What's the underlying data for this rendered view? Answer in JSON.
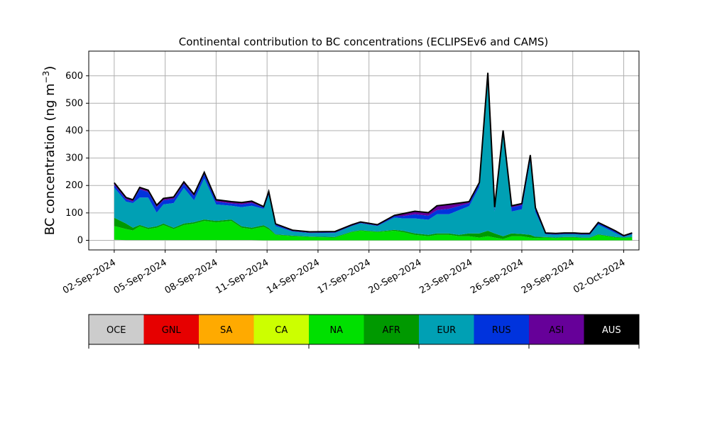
{
  "chart_data": {
    "type": "area",
    "stacked": true,
    "title": "Continental contribution to BC concentrations (ECLIPSEv6 and CAMS)",
    "ylabel": "BC concentration (ng m",
    "ylabel_sup": "−3",
    "ylabel_close": ")",
    "xlabel": "",
    "ylim": [
      -35,
      690
    ],
    "xlim": [
      0.0,
      32.4
    ],
    "grid": true,
    "x_axis": "date",
    "yticks": [
      0,
      100,
      200,
      300,
      400,
      500,
      600
    ],
    "xticks": [
      {
        "day": 1.5,
        "label": "02-Sep-2024"
      },
      {
        "day": 4.5,
        "label": "05-Sep-2024"
      },
      {
        "day": 7.5,
        "label": "08-Sep-2024"
      },
      {
        "day": 10.5,
        "label": "11-Sep-2024"
      },
      {
        "day": 13.5,
        "label": "14-Sep-2024"
      },
      {
        "day": 16.5,
        "label": "17-Sep-2024"
      },
      {
        "day": 19.5,
        "label": "20-Sep-2024"
      },
      {
        "day": 22.5,
        "label": "23-Sep-2024"
      },
      {
        "day": 25.5,
        "label": "26-Sep-2024"
      },
      {
        "day": 28.5,
        "label": "29-Sep-2024"
      },
      {
        "day": 31.5,
        "label": "02-Oct-2024"
      }
    ],
    "x": [
      1.5,
      2.2,
      2.6,
      3.0,
      3.5,
      4.0,
      4.4,
      5.0,
      5.6,
      6.2,
      6.8,
      7.5,
      8.4,
      9.0,
      9.6,
      10.3,
      10.6,
      11.0,
      12.0,
      13.0,
      14.5,
      15.5,
      16.0,
      17.0,
      18.0,
      18.5,
      19.2,
      20.0,
      20.5,
      21.2,
      21.8,
      22.4,
      23.0,
      23.5,
      23.9,
      24.4,
      24.9,
      25.5,
      26.0,
      26.3,
      26.9,
      27.5,
      28.0,
      28.6,
      29.0,
      29.5,
      30.0,
      30.5,
      31.0,
      31.5,
      32.0
    ],
    "series": [
      {
        "name": "OCE",
        "color": "#cccccc",
        "values": [
          2,
          1,
          1,
          1,
          1,
          1,
          1,
          1,
          1,
          1,
          1,
          1,
          1,
          1,
          1,
          0,
          0,
          0,
          0,
          0,
          0,
          0,
          0,
          0,
          0,
          0,
          0,
          0,
          0,
          0,
          0,
          0,
          0,
          0,
          0,
          0,
          0,
          0,
          0,
          0,
          0,
          0,
          0,
          0,
          0,
          0,
          0,
          0,
          0,
          0,
          0
        ]
      },
      {
        "name": "GNL",
        "color": "#e60000",
        "values": [
          0,
          0,
          0,
          0,
          0,
          0,
          0,
          0,
          0,
          0,
          0,
          0,
          0,
          0,
          0,
          0,
          0,
          0,
          0,
          0,
          0,
          0,
          0,
          0,
          0,
          0,
          0,
          0,
          0,
          0,
          0,
          0,
          0,
          0,
          0,
          0,
          0,
          0,
          0,
          0,
          0,
          0,
          0,
          0,
          0,
          0,
          0,
          0,
          0,
          0,
          0
        ]
      },
      {
        "name": "SA",
        "color": "#ffaa00",
        "values": [
          0,
          0,
          0,
          0,
          0,
          0,
          0,
          0,
          0,
          0,
          0,
          0,
          0,
          0,
          0,
          0,
          0,
          0,
          0,
          0,
          0,
          0,
          0,
          0,
          0,
          0,
          0,
          0,
          0,
          0,
          0,
          0,
          0,
          0,
          0,
          0,
          0,
          0,
          0,
          0,
          0,
          0,
          0,
          0,
          0,
          0,
          0,
          0,
          0,
          0,
          0
        ]
      },
      {
        "name": "CA",
        "color": "#ccff00",
        "values": [
          0,
          0,
          0,
          0,
          0,
          0,
          0,
          0,
          0,
          0,
          0,
          0,
          0,
          0,
          0,
          0,
          0,
          0,
          0,
          0,
          0,
          0,
          0,
          0,
          0,
          0,
          0,
          0,
          0,
          0,
          0,
          0,
          0,
          0,
          0,
          0,
          0,
          0,
          0,
          0,
          0,
          0,
          0,
          0,
          0,
          0,
          0,
          0,
          0,
          0,
          0
        ]
      },
      {
        "name": "NA",
        "color": "#00e000",
        "values": [
          50,
          40,
          35,
          50,
          40,
          45,
          55,
          40,
          55,
          60,
          70,
          65,
          70,
          45,
          40,
          50,
          40,
          20,
          15,
          12,
          10,
          30,
          35,
          30,
          35,
          30,
          20,
          15,
          20,
          20,
          15,
          15,
          10,
          15,
          10,
          5,
          15,
          15,
          10,
          8,
          10,
          8,
          10,
          10,
          8,
          8,
          20,
          15,
          10,
          8,
          10
        ]
      },
      {
        "name": "AFR",
        "color": "#009900",
        "values": [
          30,
          20,
          10,
          5,
          5,
          5,
          5,
          5,
          5,
          5,
          5,
          5,
          5,
          5,
          5,
          5,
          5,
          2,
          2,
          2,
          2,
          2,
          2,
          2,
          3,
          5,
          5,
          5,
          5,
          5,
          5,
          10,
          15,
          20,
          15,
          10,
          10,
          8,
          10,
          5,
          2,
          2,
          2,
          2,
          2,
          2,
          2,
          2,
          2,
          2,
          2
        ]
      },
      {
        "name": "EUR",
        "color": "#00a0b4",
        "values": [
          110,
          80,
          90,
          100,
          110,
          50,
          70,
          90,
          130,
          80,
          150,
          60,
          50,
          70,
          80,
          60,
          120,
          30,
          15,
          12,
          15,
          20,
          25,
          20,
          45,
          45,
          55,
          55,
          70,
          70,
          90,
          100,
          170,
          560,
          80,
          370,
          80,
          90,
          270,
          90,
          10,
          10,
          10,
          10,
          10,
          10,
          35,
          25,
          15,
          2,
          10
        ]
      },
      {
        "name": "RUS",
        "color": "#0033dd",
        "values": [
          10,
          8,
          5,
          30,
          20,
          20,
          15,
          15,
          15,
          15,
          15,
          10,
          8,
          10,
          10,
          5,
          10,
          5,
          2,
          2,
          2,
          2,
          2,
          2,
          5,
          8,
          15,
          15,
          15,
          20,
          15,
          10,
          10,
          10,
          10,
          10,
          15,
          15,
          15,
          10,
          2,
          2,
          2,
          2,
          2,
          2,
          5,
          5,
          5,
          2,
          2
        ]
      },
      {
        "name": "ASI",
        "color": "#660099",
        "values": [
          5,
          5,
          5,
          5,
          5,
          5,
          5,
          5,
          5,
          5,
          5,
          5,
          5,
          5,
          5,
          2,
          2,
          2,
          2,
          2,
          2,
          2,
          2,
          2,
          2,
          8,
          10,
          10,
          15,
          15,
          10,
          5,
          5,
          5,
          5,
          5,
          5,
          5,
          5,
          5,
          2,
          2,
          2,
          2,
          2,
          2,
          2,
          2,
          2,
          2,
          2
        ]
      },
      {
        "name": "AUS",
        "color": "#000000",
        "values": [
          3,
          2,
          2,
          2,
          2,
          2,
          2,
          2,
          2,
          2,
          2,
          2,
          2,
          2,
          2,
          1,
          1,
          1,
          1,
          1,
          1,
          1,
          1,
          1,
          1,
          1,
          1,
          1,
          1,
          1,
          1,
          1,
          1,
          1,
          1,
          1,
          1,
          1,
          1,
          1,
          1,
          1,
          1,
          1,
          1,
          1,
          1,
          1,
          1,
          1,
          1
        ]
      }
    ]
  }
}
